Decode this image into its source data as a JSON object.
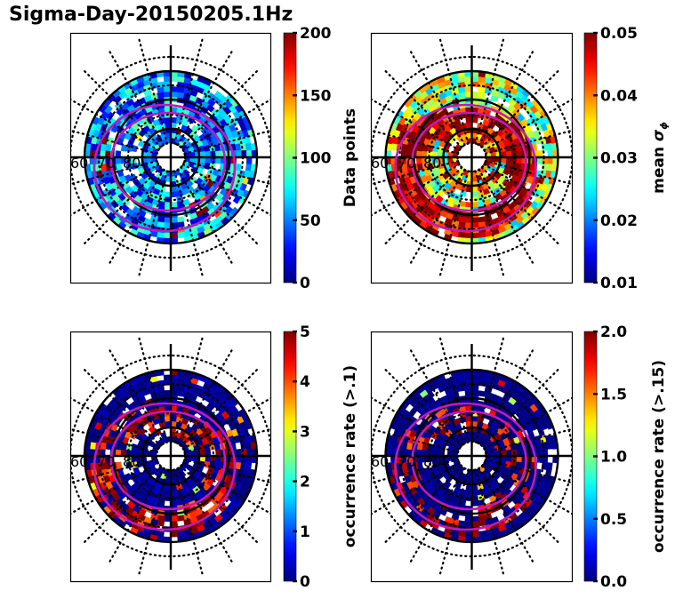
{
  "title": "Sigma-Day-20150205.1Hz",
  "chart_data": [
    {
      "type": "heatmap",
      "projection": "polar (magnetic latitude / local time)",
      "title": "",
      "colormap": "jet",
      "colorbar": {
        "label": "Data points",
        "label_math": false,
        "range": [
          0,
          200
        ],
        "ticks": [
          "0",
          "50",
          "100",
          "150",
          "200"
        ]
      },
      "latitude_labels": [
        "60",
        "70",
        "80"
      ],
      "pattern": "mostly low counts (blue, ~0–60); scattered cyan/yellow bins ~80–140 in 65–75° band; few red bins near 200",
      "seed": 11,
      "level": 0.25,
      "variance": 0.22,
      "hot_fraction": 0.03,
      "fill_fraction": 0.88
    },
    {
      "type": "heatmap",
      "projection": "polar (magnetic latitude / local time)",
      "title": "",
      "colormap": "jet",
      "colorbar": {
        "label": "mean σ",
        "label_sub": "ϕ",
        "range": [
          0.01,
          0.05
        ],
        "ticks": [
          "0.01",
          "0.02",
          "0.03",
          "0.04",
          "0.05"
        ]
      },
      "latitude_labels": [
        "60",
        "70",
        "80"
      ],
      "pattern": "outer ring ~0.02–0.035 (cyan/green); inner auroral oval band ≥0.05 (dark red) especially night side",
      "seed": 23,
      "level": 0.55,
      "variance": 0.25,
      "hot_fraction": 0.45,
      "fill_fraction": 0.92
    },
    {
      "type": "heatmap",
      "projection": "polar (magnetic latitude / local time)",
      "title": "",
      "colormap": "jet",
      "colorbar": {
        "label": "occurrence rate (>.1)",
        "label_math": false,
        "range": [
          0,
          5
        ],
        "ticks": [
          "0",
          "1",
          "2",
          "3",
          "4",
          "5"
        ]
      },
      "latitude_labels": [
        "60",
        "70",
        "80"
      ],
      "pattern": "mostly 0 (dark blue); oval band bins at ≥5 (dark red) and scattered 2–4",
      "seed": 37,
      "level": 0.02,
      "variance": 0.05,
      "hot_fraction": 0.28,
      "fill_fraction": 0.9
    },
    {
      "type": "heatmap",
      "projection": "polar (magnetic latitude / local time)",
      "title": "",
      "colormap": "jet",
      "colorbar": {
        "label": "occurrence rate (>.15)",
        "label_math": false,
        "range": [
          0.0,
          2.0
        ],
        "ticks": [
          "0.0",
          "0.5",
          "1.0",
          "1.5",
          "2.0"
        ]
      },
      "latitude_labels": [
        "60",
        "70",
        "80"
      ],
      "pattern": "mostly 0 (dark blue); sparse oval bins at ≥2.0 (dark red) and a few 1.0–1.7",
      "seed": 53,
      "level": 0.01,
      "variance": 0.03,
      "hot_fraction": 0.18,
      "fill_fraction": 0.9
    }
  ],
  "colors": {
    "oval": "#c01ab8",
    "grid": "#000000"
  }
}
